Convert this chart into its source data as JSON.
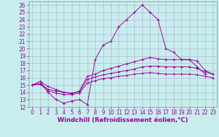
{
  "background_color": "#c8eded",
  "grid_color": "#aaaacc",
  "line_color": "#990099",
  "xlabel": "Windchill (Refroidissement éolien,°C)",
  "xlabel_fontsize": 6.5,
  "tick_fontsize": 5.5,
  "xlim": [
    -0.5,
    23.5
  ],
  "ylim": [
    12,
    26.5
  ],
  "yticks": [
    12,
    13,
    14,
    15,
    16,
    17,
    18,
    19,
    20,
    21,
    22,
    23,
    24,
    25,
    26
  ],
  "xticks": [
    0,
    1,
    2,
    3,
    4,
    5,
    6,
    7,
    8,
    9,
    10,
    11,
    12,
    13,
    14,
    15,
    16,
    17,
    18,
    19,
    20,
    21,
    22,
    23
  ],
  "line1_x": [
    0,
    1,
    2,
    3,
    4,
    5,
    6,
    7,
    8,
    9,
    10,
    11,
    12,
    13,
    14,
    15,
    16,
    17,
    18,
    19,
    20,
    21,
    22
  ],
  "line1_y": [
    15.0,
    15.5,
    14.0,
    13.0,
    12.5,
    12.8,
    13.0,
    12.3,
    18.5,
    20.5,
    21.0,
    23.0,
    24.0,
    25.0,
    26.0,
    25.0,
    24.0,
    20.0,
    19.5,
    18.5,
    18.5,
    17.5,
    16.5
  ],
  "line2_x": [
    0,
    1,
    2,
    3,
    4,
    5,
    6,
    7,
    8,
    9,
    10,
    11,
    12,
    13,
    14,
    15,
    16,
    17,
    18,
    19,
    20,
    21,
    22,
    23
  ],
  "line2_y": [
    15.0,
    15.5,
    14.8,
    14.4,
    14.0,
    13.8,
    14.2,
    16.2,
    16.5,
    17.0,
    17.3,
    17.6,
    17.9,
    18.2,
    18.5,
    18.8,
    18.6,
    18.5,
    18.5,
    18.5,
    18.5,
    18.3,
    17.0,
    16.5
  ],
  "line3_x": [
    0,
    1,
    2,
    3,
    4,
    5,
    6,
    7,
    8,
    9,
    10,
    11,
    12,
    13,
    14,
    15,
    16,
    17,
    18,
    19,
    20,
    21,
    22,
    23
  ],
  "line3_y": [
    15.0,
    15.2,
    14.4,
    14.2,
    14.0,
    13.9,
    14.1,
    15.8,
    16.1,
    16.4,
    16.6,
    16.8,
    17.0,
    17.2,
    17.5,
    17.6,
    17.6,
    17.5,
    17.5,
    17.5,
    17.5,
    17.3,
    16.8,
    16.5
  ],
  "line4_x": [
    0,
    1,
    2,
    3,
    4,
    5,
    6,
    7,
    8,
    9,
    10,
    11,
    12,
    13,
    14,
    15,
    16,
    17,
    18,
    19,
    20,
    21,
    22,
    23
  ],
  "line4_y": [
    15.0,
    15.1,
    14.2,
    13.9,
    13.7,
    13.7,
    13.9,
    15.3,
    15.6,
    15.9,
    16.0,
    16.2,
    16.3,
    16.5,
    16.6,
    16.7,
    16.6,
    16.5,
    16.5,
    16.5,
    16.5,
    16.4,
    16.2,
    16.0
  ]
}
